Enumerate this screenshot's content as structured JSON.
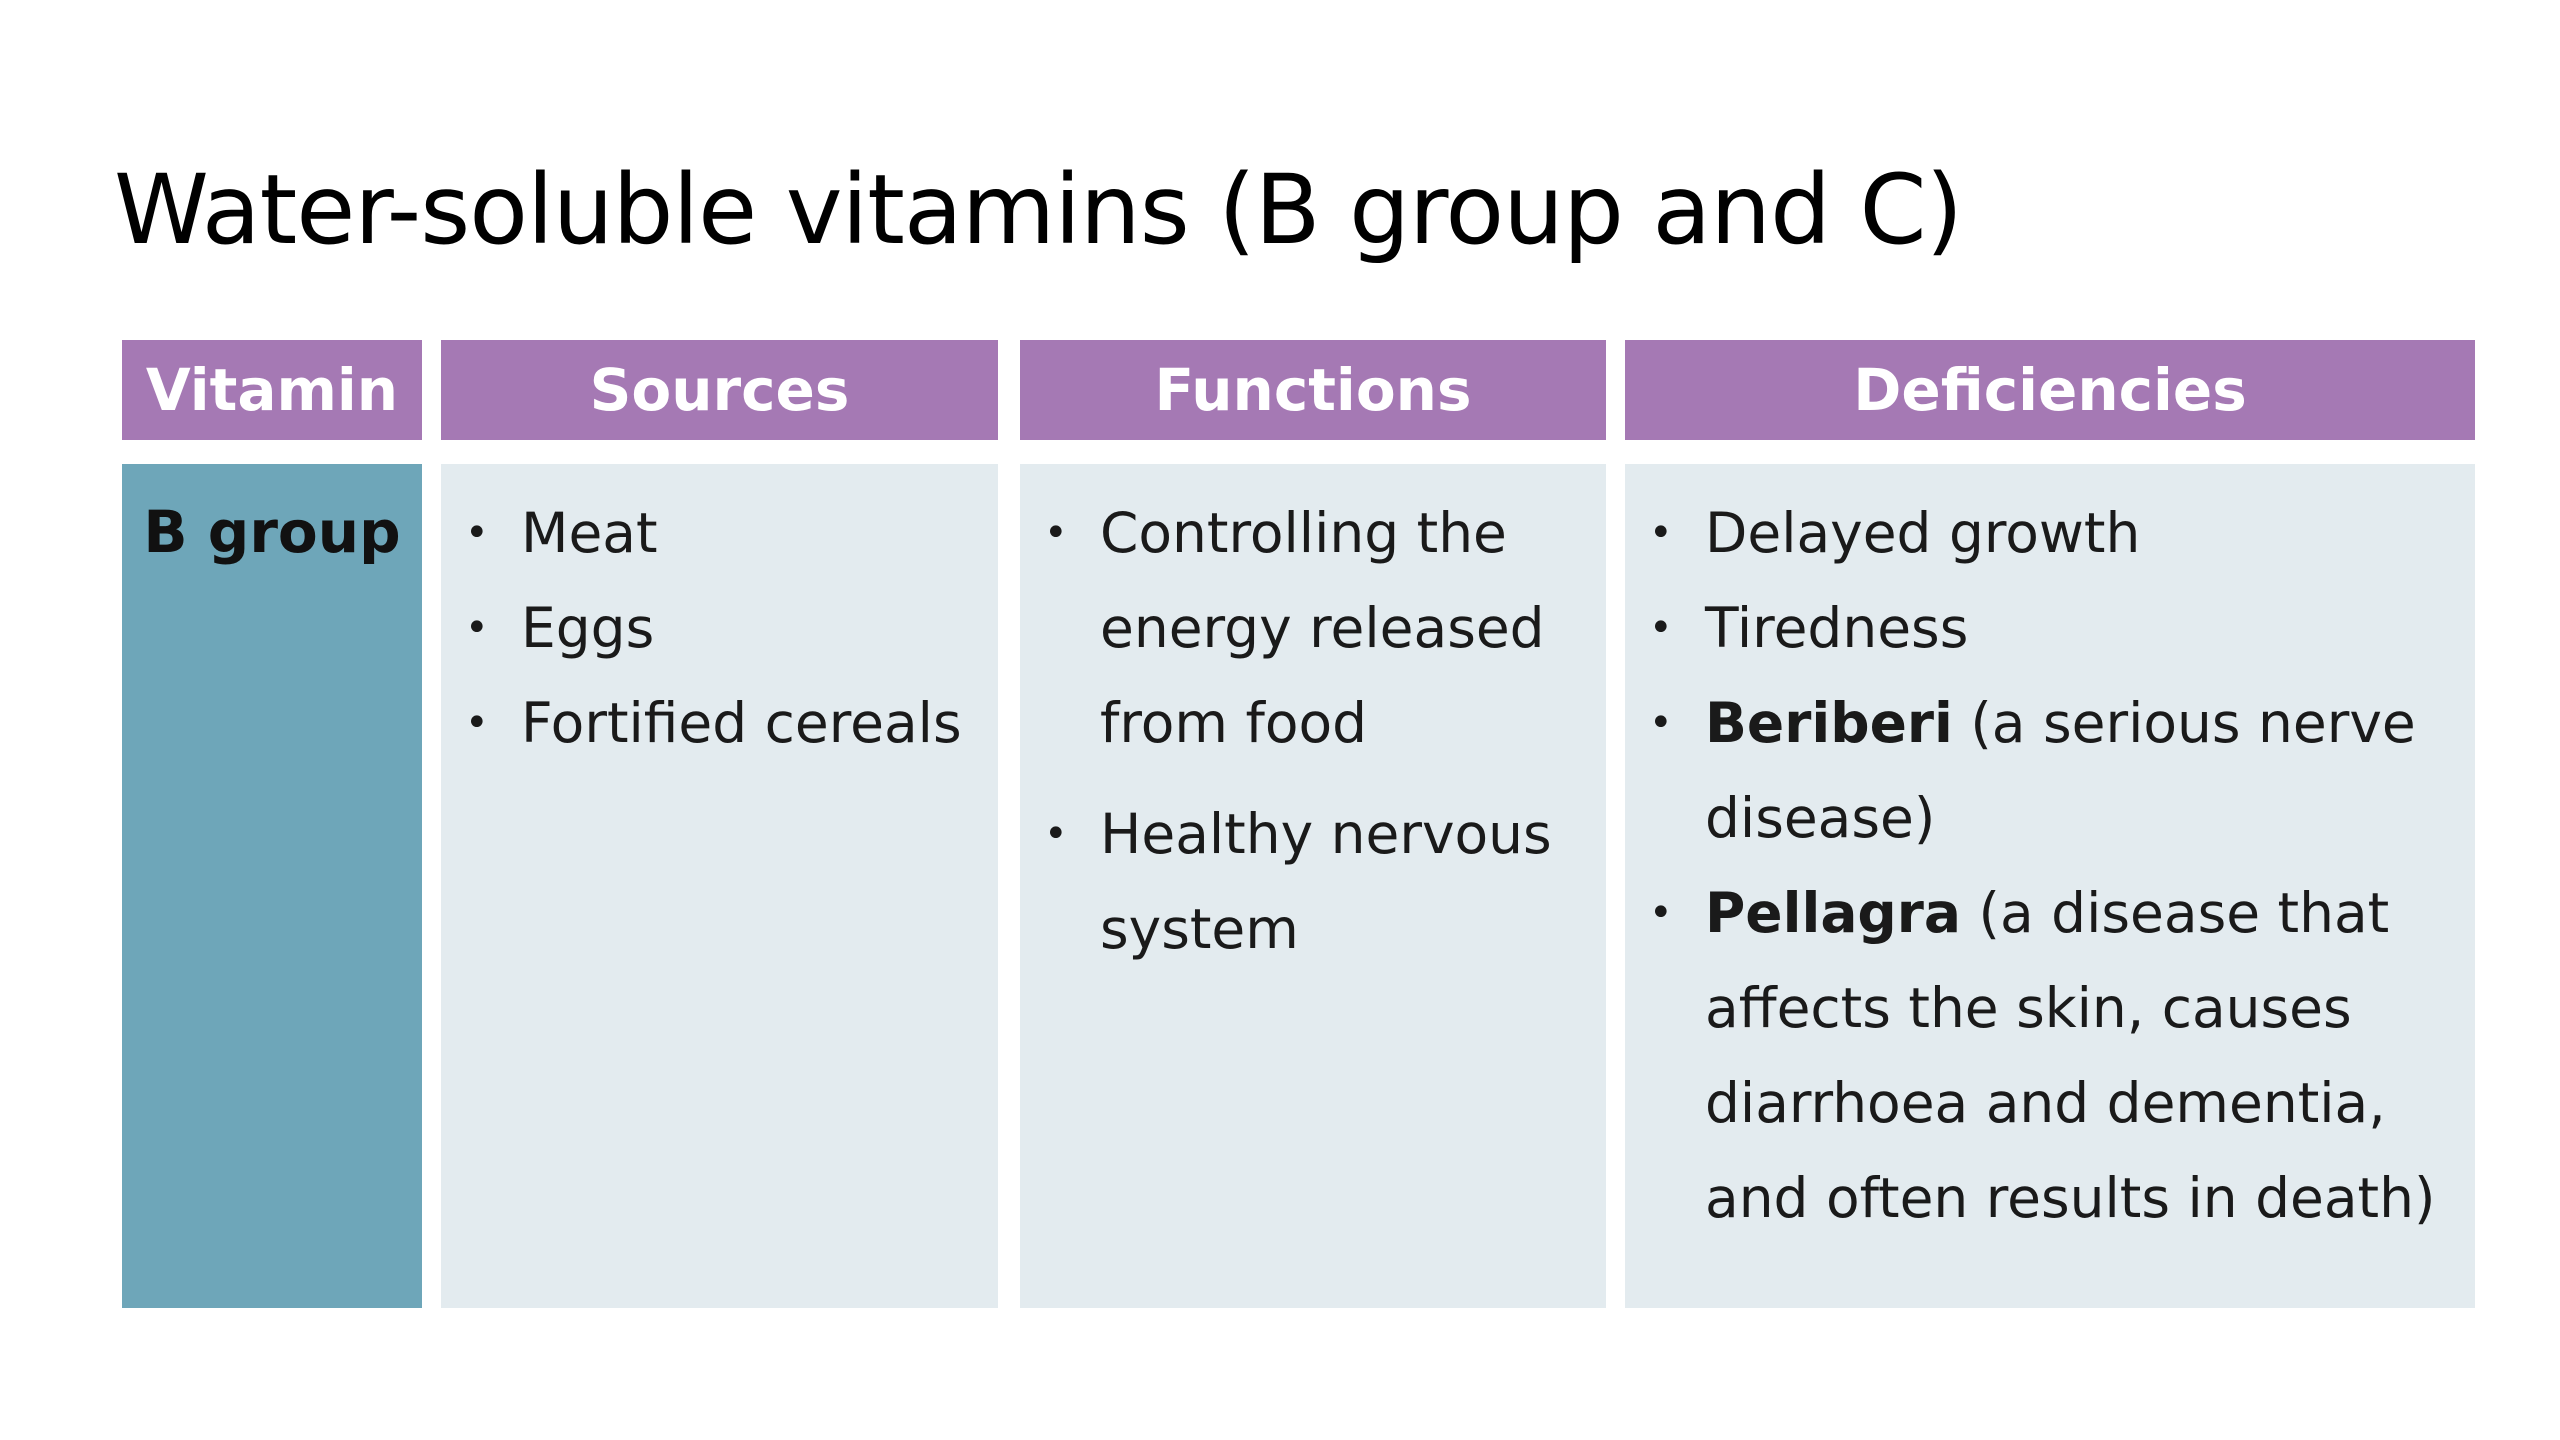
{
  "title": "Water-soluble vitamins (B group and C)",
  "headers": {
    "vitamin": "Vitamin",
    "sources": "Sources",
    "functions": "Functions",
    "deficiencies": "Deficiencies"
  },
  "row": {
    "vitamin": "B group",
    "sources": [
      "Meat",
      "Eggs",
      "Fortified cereals"
    ],
    "functions": [
      "Controlling the energy released from food",
      "Healthy nervous system"
    ],
    "deficiencies": [
      {
        "bold": "",
        "text": "Delayed growth"
      },
      {
        "bold": "",
        "text": "Tiredness"
      },
      {
        "bold": "Beriberi",
        "text": " (a serious nerve disease)"
      },
      {
        "bold": "Pellagra",
        "text": " (a disease that affects the skin, causes diarrhoea and dementia, and often results in death)"
      }
    ]
  },
  "colors": {
    "header": "#a579b4",
    "vitamin_cell": "#6ea6b9",
    "body_cell": "#e3ebef"
  }
}
